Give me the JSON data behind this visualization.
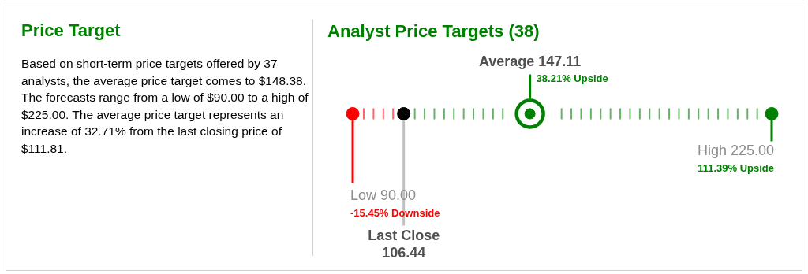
{
  "chart_data": [
    {
      "type": "other",
      "title": "Price Target",
      "annotations": [
        "Based on short-term price targets offered by 37 analysts, the average price target comes to $148.38. The forecasts range from a low of $90.00 to a high of $225.00. The average price target represents an increase of 32.71% from the last closing price of $111.81."
      ]
    },
    {
      "type": "other",
      "title": "Analyst Price Targets (38)",
      "categories": [
        "Low",
        "Last Close",
        "Average",
        "High"
      ],
      "values": [
        90,
        106.44,
        147.11,
        225
      ],
      "value_labels": [
        "90.00",
        "106.44",
        "147.11",
        "225.00"
      ],
      "colors": [
        "#ff0000",
        "#000000",
        "#008000",
        "#008000"
      ],
      "annotations": [
        {
          "text": "-15.45% Downside",
          "x": "Low"
        },
        {
          "text": "38.21% Upside",
          "x": "Average"
        },
        {
          "text": "111.39% Upside",
          "x": "High"
        }
      ]
    }
  ]
}
